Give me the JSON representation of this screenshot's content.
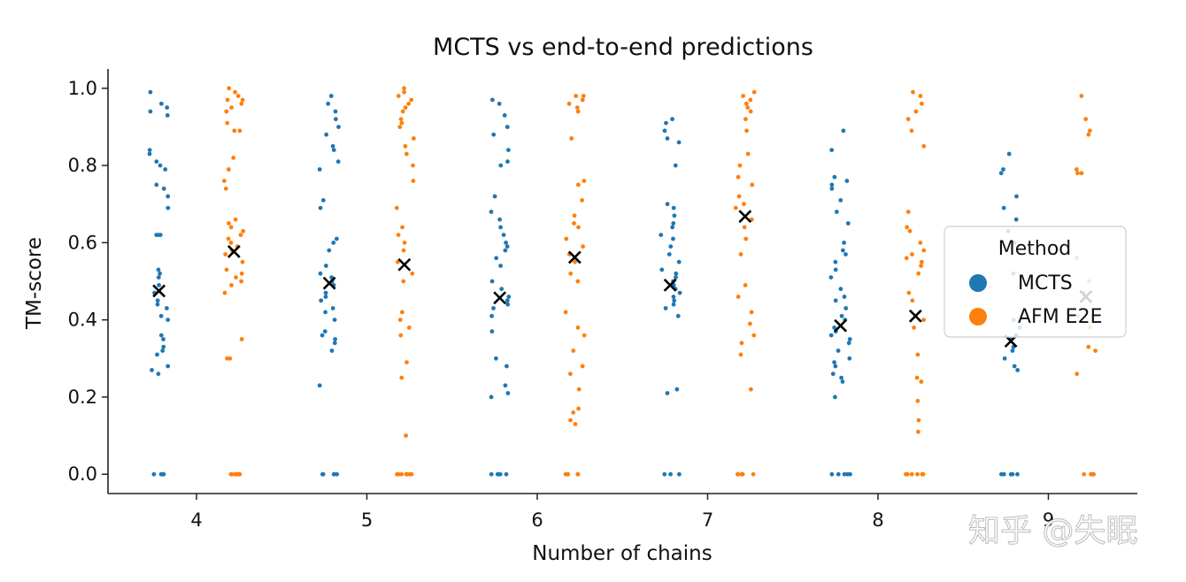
{
  "chart_data": {
    "type": "scatter",
    "subtype": "strip-plot",
    "title": "MCTS vs end-to-end predictions",
    "xlabel": "Number of chains",
    "ylabel": "TM-score",
    "categories": [
      4,
      5,
      6,
      7,
      8,
      9
    ],
    "category_labels": [
      "4",
      "5",
      "6",
      "7",
      "8",
      "9"
    ],
    "ylim": [
      -0.05,
      1.05
    ],
    "yticks": [
      0.0,
      0.2,
      0.4,
      0.6,
      0.8,
      1.0
    ],
    "ytick_labels": [
      "0.0",
      "0.2",
      "0.4",
      "0.6",
      "0.8",
      "1.0"
    ],
    "grid": false,
    "legend": {
      "title": "Method",
      "position": "right",
      "entries": [
        {
          "label": "MCTS",
          "color": "#1f77b4"
        },
        {
          "label": "AFM E2E",
          "color": "#ff7f0e"
        }
      ]
    },
    "series": [
      {
        "name": "MCTS",
        "color": "#1f77b4",
        "offset": -0.22,
        "points": {
          "4": [
            0.0,
            0.0,
            0.0,
            0.0,
            0.0,
            0.26,
            0.27,
            0.28,
            0.31,
            0.32,
            0.33,
            0.35,
            0.36,
            0.4,
            0.41,
            0.43,
            0.44,
            0.45,
            0.47,
            0.49,
            0.51,
            0.52,
            0.53,
            0.62,
            0.62,
            0.62,
            0.69,
            0.72,
            0.74,
            0.75,
            0.79,
            0.8,
            0.81,
            0.83,
            0.84,
            0.93,
            0.94,
            0.95,
            0.96,
            0.99
          ],
          "5": [
            0.0,
            0.0,
            0.0,
            0.0,
            0.0,
            0.23,
            0.32,
            0.34,
            0.35,
            0.36,
            0.37,
            0.4,
            0.42,
            0.43,
            0.45,
            0.46,
            0.47,
            0.49,
            0.5,
            0.51,
            0.52,
            0.54,
            0.58,
            0.6,
            0.61,
            0.69,
            0.71,
            0.79,
            0.81,
            0.84,
            0.85,
            0.88,
            0.9,
            0.92,
            0.94,
            0.96,
            0.98
          ],
          "6": [
            0.0,
            0.0,
            0.0,
            0.0,
            0.0,
            0.2,
            0.21,
            0.23,
            0.28,
            0.3,
            0.37,
            0.41,
            0.43,
            0.44,
            0.45,
            0.46,
            0.48,
            0.5,
            0.54,
            0.56,
            0.58,
            0.59,
            0.6,
            0.62,
            0.64,
            0.66,
            0.68,
            0.72,
            0.8,
            0.81,
            0.84,
            0.88,
            0.9,
            0.93,
            0.96,
            0.97
          ],
          "7": [
            0.0,
            0.0,
            0.0,
            0.21,
            0.22,
            0.41,
            0.43,
            0.44,
            0.45,
            0.46,
            0.47,
            0.48,
            0.49,
            0.5,
            0.51,
            0.52,
            0.53,
            0.55,
            0.57,
            0.59,
            0.61,
            0.62,
            0.64,
            0.65,
            0.67,
            0.69,
            0.7,
            0.8,
            0.86,
            0.87,
            0.89,
            0.91,
            0.92
          ],
          "8": [
            0.0,
            0.0,
            0.0,
            0.0,
            0.0,
            0.2,
            0.24,
            0.25,
            0.26,
            0.28,
            0.29,
            0.3,
            0.32,
            0.34,
            0.35,
            0.36,
            0.37,
            0.38,
            0.4,
            0.41,
            0.43,
            0.45,
            0.46,
            0.48,
            0.51,
            0.53,
            0.55,
            0.57,
            0.58,
            0.6,
            0.65,
            0.68,
            0.71,
            0.74,
            0.75,
            0.76,
            0.77,
            0.84,
            0.89
          ],
          "9": [
            0.0,
            0.0,
            0.0,
            0.0,
            0.0,
            0.27,
            0.28,
            0.3,
            0.32,
            0.33,
            0.35,
            0.36,
            0.38,
            0.4,
            0.52,
            0.6,
            0.63,
            0.66,
            0.69,
            0.72,
            0.78,
            0.79,
            0.83
          ]
        },
        "mean": {
          "4": 0.475,
          "5": 0.495,
          "6": 0.457,
          "7": 0.49,
          "8": 0.385,
          "9": 0.345
        }
      },
      {
        "name": "AFM E2E",
        "color": "#ff7f0e",
        "offset": 0.22,
        "points": {
          "4": [
            0.0,
            0.0,
            0.0,
            0.0,
            0.0,
            0.0,
            0.0,
            0.0,
            0.3,
            0.3,
            0.35,
            0.47,
            0.49,
            0.5,
            0.51,
            0.52,
            0.53,
            0.55,
            0.57,
            0.58,
            0.59,
            0.6,
            0.61,
            0.62,
            0.63,
            0.64,
            0.65,
            0.66,
            0.74,
            0.76,
            0.79,
            0.82,
            0.89,
            0.89,
            0.91,
            0.94,
            0.95,
            0.96,
            0.97,
            0.97,
            0.98,
            0.99,
            1.0
          ],
          "5": [
            0.0,
            0.0,
            0.0,
            0.0,
            0.0,
            0.0,
            0.0,
            0.0,
            0.1,
            0.25,
            0.29,
            0.36,
            0.38,
            0.4,
            0.42,
            0.5,
            0.52,
            0.55,
            0.58,
            0.6,
            0.62,
            0.64,
            0.69,
            0.76,
            0.8,
            0.83,
            0.85,
            0.87,
            0.9,
            0.91,
            0.92,
            0.94,
            0.95,
            0.96,
            0.97,
            0.98,
            0.99,
            1.0
          ],
          "6": [
            0.0,
            0.0,
            0.0,
            0.0,
            0.0,
            0.13,
            0.14,
            0.16,
            0.17,
            0.22,
            0.26,
            0.28,
            0.32,
            0.36,
            0.38,
            0.42,
            0.5,
            0.52,
            0.55,
            0.57,
            0.59,
            0.61,
            0.64,
            0.65,
            0.67,
            0.71,
            0.75,
            0.76,
            0.87,
            0.94,
            0.95,
            0.96,
            0.97,
            0.98,
            0.98
          ],
          "7": [
            0.0,
            0.0,
            0.0,
            0.0,
            0.0,
            0.0,
            0.22,
            0.31,
            0.34,
            0.36,
            0.39,
            0.42,
            0.46,
            0.49,
            0.57,
            0.61,
            0.64,
            0.66,
            0.69,
            0.7,
            0.72,
            0.75,
            0.77,
            0.8,
            0.83,
            0.89,
            0.92,
            0.94,
            0.95,
            0.96,
            0.97,
            0.98,
            0.99
          ],
          "8": [
            0.0,
            0.0,
            0.0,
            0.0,
            0.0,
            0.0,
            0.0,
            0.11,
            0.14,
            0.19,
            0.24,
            0.25,
            0.31,
            0.38,
            0.4,
            0.45,
            0.47,
            0.52,
            0.54,
            0.55,
            0.56,
            0.57,
            0.58,
            0.6,
            0.63,
            0.64,
            0.68,
            0.85,
            0.89,
            0.92,
            0.94,
            0.96,
            0.98,
            0.99
          ],
          "9": [
            0.0,
            0.0,
            0.0,
            0.0,
            0.26,
            0.32,
            0.33,
            0.38,
            0.41,
            0.47,
            0.5,
            0.56,
            0.78,
            0.78,
            0.79,
            0.88,
            0.89,
            0.92,
            0.98
          ]
        },
        "mean": {
          "4": 0.577,
          "5": 0.543,
          "6": 0.562,
          "7": 0.668,
          "8": 0.41,
          "9": 0.46
        }
      }
    ]
  },
  "watermark": "知乎 @失眠"
}
